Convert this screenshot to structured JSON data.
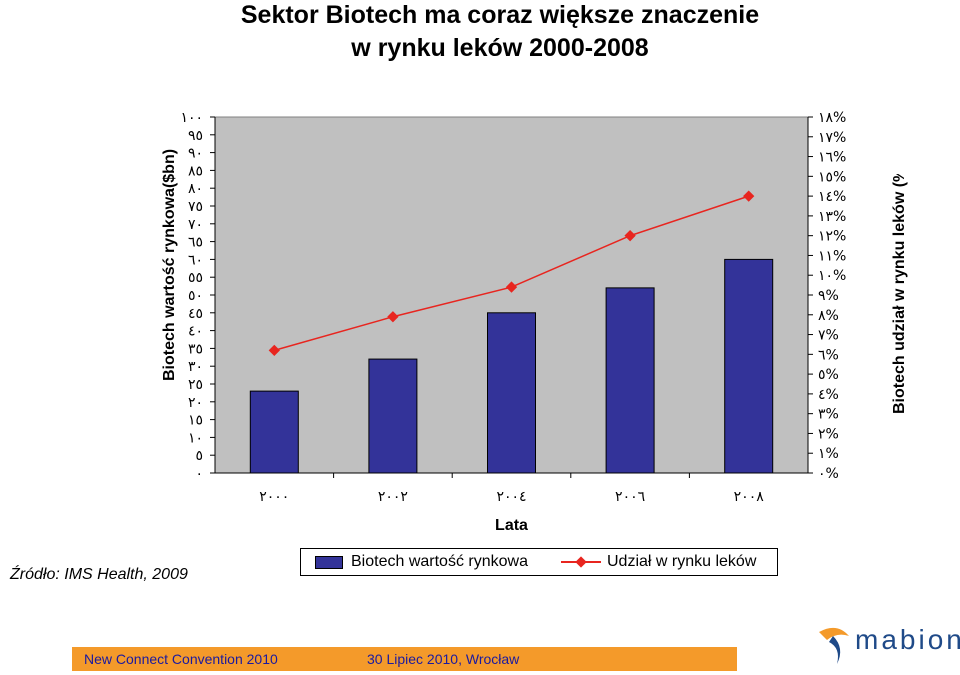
{
  "chart_data": {
    "type": "bar",
    "title": "Sektor Biotech ma coraz większe znaczenie",
    "subtitle": "w rynku leków 2000-2008",
    "xlabel": "Lata",
    "ylabel": "Biotech wartość rynkowa($bn)",
    "ylabel2": "Biotech udział w rynku leków (%)",
    "categories": [
      "٢٠٠٠",
      "٢٠٠٢",
      "٢٠٠٤",
      "٢٠٠٦",
      "٢٠٠٨"
    ],
    "ylim": [
      0,
      100
    ],
    "y_ticks": [
      "٠",
      "٥",
      "١٠",
      "١٥",
      "٢٠",
      "٢٥",
      "٣٠",
      "٣٥",
      "٤٠",
      "٤٥",
      "٥٠",
      "٥٥",
      "٦٠",
      "٦٥",
      "٧٠",
      "٧٥",
      "٨٠",
      "٨٥",
      "٩٠",
      "٩٥",
      "١٠٠"
    ],
    "y2lim": [
      0,
      18
    ],
    "y2_ticks": [
      "٠%",
      "١%",
      "٢%",
      "٣%",
      "٤%",
      "٥%",
      "٦%",
      "٧%",
      "٨%",
      "٩%",
      "١٠%",
      "١١%",
      "١٢%",
      "١٣%",
      "١٤%",
      "١٥%",
      "١٦%",
      "١٧%",
      "١٨%"
    ],
    "series": [
      {
        "name": "Biotech wartość rynkowa",
        "type": "bar",
        "axis": "left",
        "color": "#333399",
        "values": [
          23,
          32,
          45,
          52,
          60
        ]
      },
      {
        "name": "Udział w rynku leków",
        "type": "line",
        "axis": "right",
        "color": "#e8251f",
        "values": [
          6.2,
          7.9,
          9.4,
          12.0,
          14.0
        ]
      }
    ],
    "grid": false,
    "legend_position": "bottom",
    "plot_background": "#c0c0c0"
  },
  "source": "Źródło: IMS Health, 2009",
  "footer": {
    "left": "New Connect Convention 2010",
    "right": "30 Lipiec 2010, Wrocław",
    "background": "#f49a2a"
  },
  "logo": {
    "text": "mabion",
    "icon": "mabion-swoosh-logo"
  }
}
